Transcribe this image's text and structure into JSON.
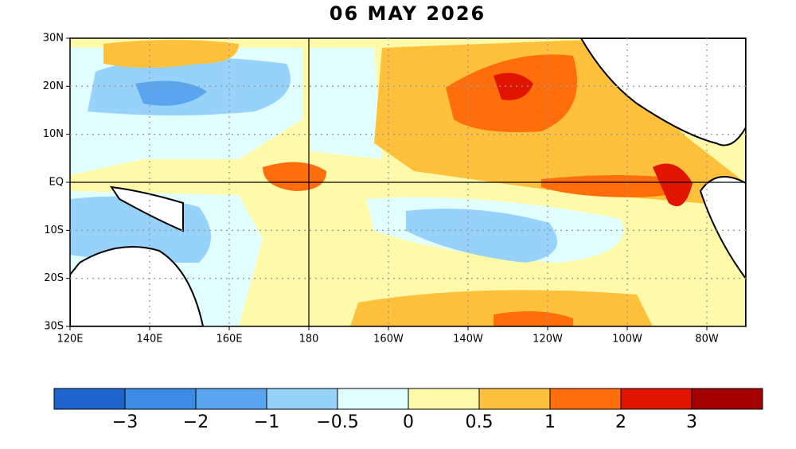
{
  "title": "06 MAY 2026",
  "map": {
    "lat_labels": [
      "30N",
      "20N",
      "10N",
      "EQ",
      "10S",
      "20S",
      "30S"
    ],
    "lon_labels": [
      "120E",
      "140E",
      "160E",
      "180",
      "160W",
      "140W",
      "120W",
      "100W",
      "80W"
    ]
  },
  "legend": {
    "colors": [
      "#1e64cc",
      "#3c8ce6",
      "#5aa5f0",
      "#96d2fa",
      "#e1ffff",
      "#fffaaa",
      "#ffc03c",
      "#ff6e0a",
      "#e11400",
      "#a50000"
    ],
    "labels": [
      "−3",
      "−2",
      "−1",
      "−0.5",
      "0",
      "0.5",
      "1",
      "2",
      "3"
    ]
  }
}
